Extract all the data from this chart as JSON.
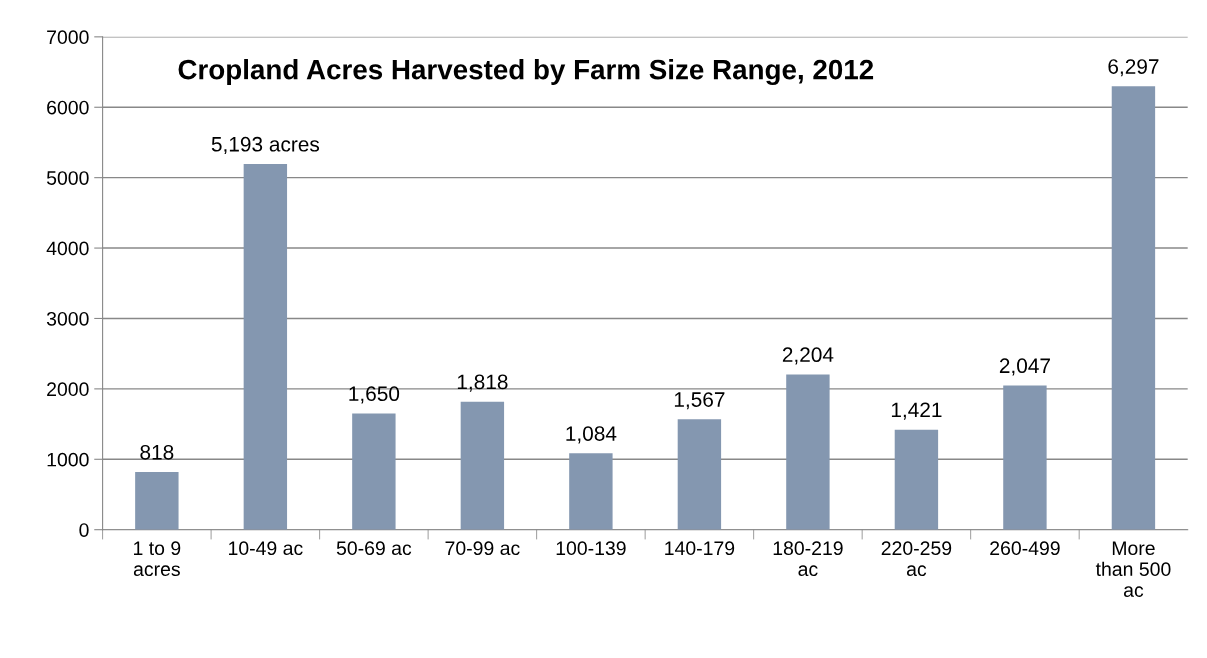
{
  "chart_data": {
    "type": "bar",
    "title": "Cropland Acres Harvested by Farm Size Range, 2012",
    "categories": [
      "1 to 9\nacres",
      "10-49 ac",
      "50-69 ac",
      "70-99 ac",
      "100-139",
      "140-179",
      "180-219\nac",
      "220-259\nac",
      "260-499",
      "More\nthan 500\nac"
    ],
    "values": [
      818,
      5193,
      1650,
      1818,
      1084,
      1567,
      2204,
      1421,
      2047,
      6297
    ],
    "value_labels": [
      "818",
      "5,193 acres",
      "1,650",
      "1,818",
      "1,084",
      "1,567",
      "2,204",
      "1,421",
      "2,047",
      "6,297"
    ],
    "color": "#8497b0",
    "ylim": [
      0,
      7000
    ],
    "yticks": [
      0,
      1000,
      2000,
      3000,
      4000,
      5000,
      6000,
      7000
    ],
    "grid": "y"
  }
}
